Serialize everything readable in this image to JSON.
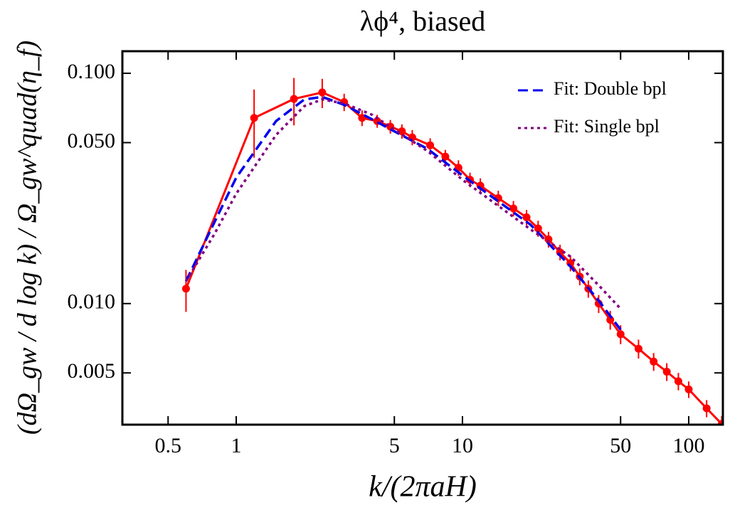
{
  "chart_data": {
    "type": "line",
    "title": "λϕ⁴, biased",
    "xlabel": "k/(2πaH)",
    "ylabel": "(dΩ_gw / d log k) / Ω_gw^quad(η_f)",
    "xscale": "log",
    "yscale": "log",
    "grid": false,
    "legend": "top-right",
    "xlim": [
      0.314,
      141.6
    ],
    "ylim": [
      0.00298,
      0.1247
    ],
    "xticks": [
      0.5,
      1,
      5,
      10,
      50,
      100
    ],
    "yticks": [
      {
        "value": 0.1,
        "label": "0.100"
      },
      {
        "value": 0.05,
        "label": "0.050"
      },
      {
        "value": 0.01,
        "label": "0.010"
      },
      0.005
    ],
    "series": [
      {
        "color": "#ff0000",
        "style": "solid",
        "markers": true,
        "x": [
          0.6,
          1.2,
          1.8,
          2.4,
          3.0,
          3.6,
          4.2,
          4.8,
          5.4,
          6.0,
          7.2,
          8.4,
          9.6,
          10.8,
          12,
          14.4,
          16.8,
          19.2,
          21.6,
          24,
          27,
          30,
          33,
          36,
          40,
          45,
          50,
          60,
          70,
          80,
          90,
          100,
          120,
          140
        ],
        "values": [
          0.0116,
          0.064,
          0.0774,
          0.0826,
          0.075,
          0.064,
          0.062,
          0.0587,
          0.056,
          0.0527,
          0.0487,
          0.0435,
          0.0389,
          0.0345,
          0.0325,
          0.0287,
          0.0259,
          0.0237,
          0.0212,
          0.019,
          0.0167,
          0.015,
          0.0131,
          0.0116,
          0.01,
          0.0085,
          0.00736,
          0.00637,
          0.0056,
          0.00506,
          0.0046,
          0.00424,
          0.00351,
          0.003
        ],
        "errors": [
          0.0024,
          0.021,
          0.018,
          0.012,
          0.0065,
          0.005,
          0.004,
          0.004,
          0.004,
          0.004,
          0.0035,
          0.003,
          0.003,
          0.0025,
          0.0025,
          0.0022,
          0.002,
          0.0018,
          0.0017,
          0.0015,
          0.0013,
          0.0012,
          0.0011,
          0.001,
          0.0009,
          0.0008,
          0.0007,
          0.0006,
          0.0005,
          0.00045,
          0.0004,
          0.00035,
          0.0003,
          0.00025
        ]
      },
      {
        "name": "Fit: Double bpl",
        "color": "#0000ee",
        "style": "dashed",
        "x": [
          0.6,
          0.8,
          1,
          1.5,
          2,
          2.4,
          3,
          4,
          5,
          7,
          10,
          20,
          30,
          40,
          50
        ],
        "values": [
          0.0125,
          0.0225,
          0.0352,
          0.062,
          0.077,
          0.079,
          0.073,
          0.063,
          0.056,
          0.047,
          0.036,
          0.022,
          0.0145,
          0.0103,
          0.0077
        ]
      },
      {
        "name": "Fit: Single bpl",
        "color": "#800080",
        "style": "dotted",
        "x": [
          0.6,
          0.8,
          1,
          1.5,
          2,
          2.4,
          3,
          4,
          5,
          7,
          10,
          20,
          30,
          40,
          50
        ],
        "values": [
          0.0125,
          0.02,
          0.03,
          0.054,
          0.072,
          0.077,
          0.074,
          0.066,
          0.057,
          0.046,
          0.0345,
          0.021,
          0.016,
          0.012,
          0.0095
        ]
      }
    ]
  }
}
